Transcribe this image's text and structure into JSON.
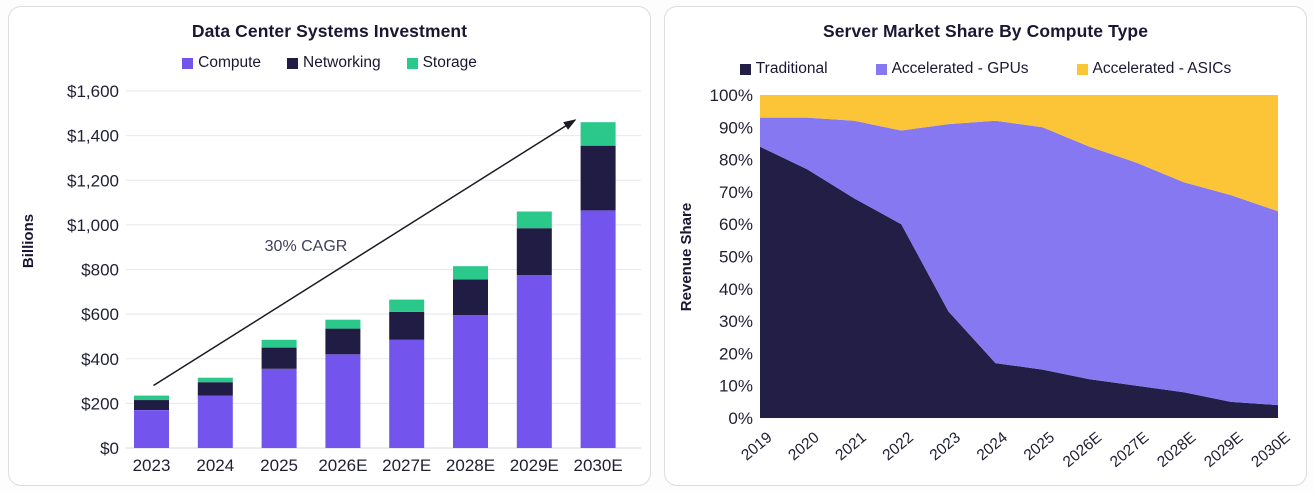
{
  "page": {
    "background": "#FDFDFE"
  },
  "chart_data": [
    {
      "type": "bar",
      "stacked": true,
      "title": "Data Center Systems Investment",
      "ylabel": "Billions",
      "xlabel": "",
      "categories": [
        "2023",
        "2024",
        "2025",
        "2026E",
        "2027E",
        "2028E",
        "2029E",
        "2030E"
      ],
      "series": [
        {
          "name": "Compute",
          "color": "#7355EE",
          "values": [
            170,
            235,
            355,
            420,
            485,
            595,
            775,
            1065
          ]
        },
        {
          "name": "Networking",
          "color": "#211C44",
          "values": [
            45,
            60,
            95,
            115,
            125,
            160,
            210,
            290
          ]
        },
        {
          "name": "Storage",
          "color": "#2AC88A",
          "values": [
            20,
            20,
            35,
            40,
            55,
            60,
            75,
            105
          ]
        }
      ],
      "totals": [
        235,
        315,
        485,
        575,
        665,
        815,
        1060,
        1460
      ],
      "ylim": [
        0,
        1600
      ],
      "ytick_step": 200,
      "ytick_labels": [
        "$0",
        "$200",
        "$400",
        "$600",
        "$800",
        "$1,000",
        "$1,200",
        "$1,400",
        "$1,600"
      ],
      "annotation": {
        "text": "30% CAGR"
      },
      "legend_position": "top",
      "grid": "horizontal"
    },
    {
      "type": "area",
      "stacked": true,
      "normalized": true,
      "title": "Server Market Share By Compute Type",
      "ylabel": "Revenue Share",
      "xlabel": "",
      "x": [
        "2019",
        "2020",
        "2021",
        "2022",
        "2023",
        "2024",
        "2025",
        "2026E",
        "2027E",
        "2028E",
        "2029E",
        "2030E"
      ],
      "series": [
        {
          "name": "Traditional",
          "color": "#221E45",
          "values": [
            84,
            77,
            68,
            60,
            33,
            17,
            15,
            12,
            10,
            8,
            5,
            4
          ]
        },
        {
          "name": "Accelerated - GPUs",
          "color": "#8678F0",
          "values": [
            9,
            16,
            24,
            29,
            58,
            75,
            75,
            72,
            69,
            65,
            64,
            60
          ]
        },
        {
          "name": "Accelerated - ASICs",
          "color": "#FCC437",
          "values": [
            7,
            7,
            8,
            11,
            9,
            8,
            10,
            16,
            21,
            27,
            31,
            36
          ]
        }
      ],
      "ylim": [
        0,
        100
      ],
      "ytick_labels": [
        "0%",
        "10%",
        "20%",
        "30%",
        "40%",
        "50%",
        "60%",
        "70%",
        "80%",
        "90%",
        "100%"
      ],
      "legend_position": "top",
      "grid": "none"
    }
  ]
}
